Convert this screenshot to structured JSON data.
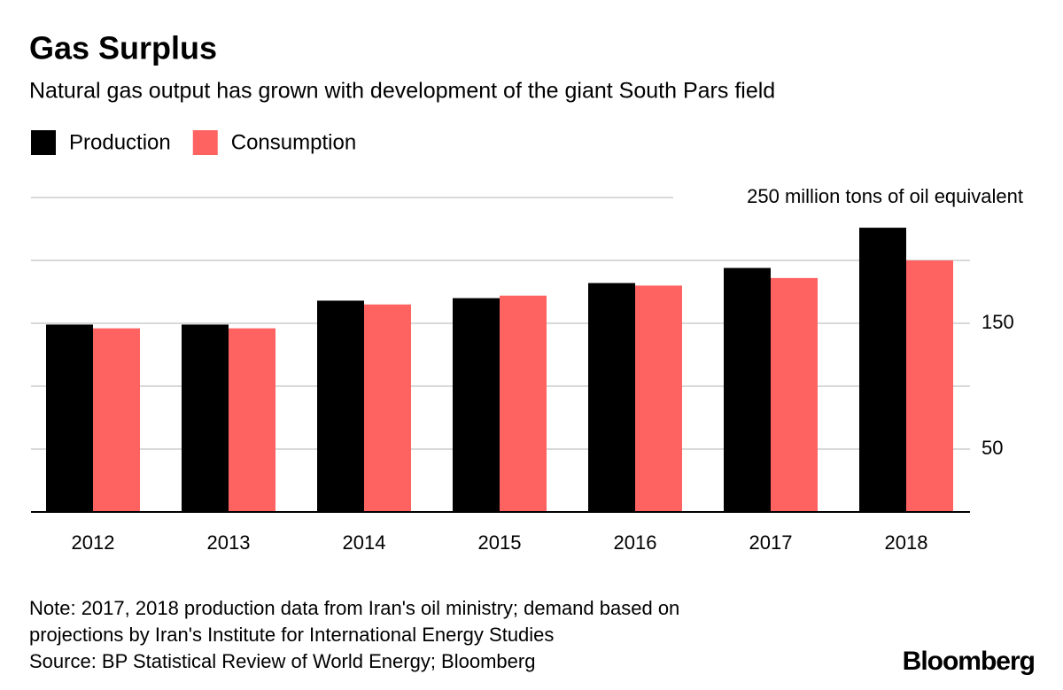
{
  "chart_data": {
    "type": "bar",
    "title": "Gas Surplus",
    "subtitle": "Natural gas output has grown with development of the giant South Pars field",
    "categories": [
      "2012",
      "2013",
      "2014",
      "2015",
      "2016",
      "2017",
      "2018"
    ],
    "series": [
      {
        "name": "Production",
        "color": "#000000",
        "values": [
          149,
          149,
          168,
          170,
          182,
          194,
          226
        ]
      },
      {
        "name": "Consumption",
        "color": "#ff6361",
        "values": [
          146,
          146,
          165,
          172,
          180,
          186,
          200
        ]
      }
    ],
    "ylim": [
      0,
      250
    ],
    "yticks": [
      50,
      {
        "value": 100,
        "label": null
      },
      150,
      {
        "value": 200,
        "label": null
      },
      {
        "value": 250,
        "label": "250 million tons of oil equivalent"
      }
    ],
    "grid": true,
    "notes": [
      "Note: 2017, 2018 production data from Iran's oil ministry; demand based on",
      "projections by Iran's Institute for International Energy Studies",
      "Source: BP Statistical Review of World Energy; Bloomberg"
    ],
    "brand": "Bloomberg"
  }
}
